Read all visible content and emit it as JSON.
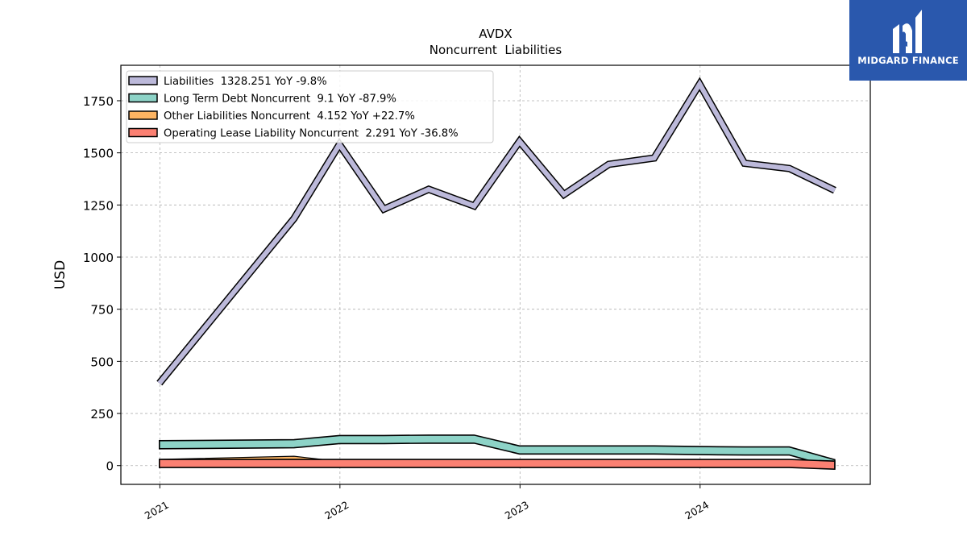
{
  "branding": {
    "logo_text": "MIDGARD FINANCE",
    "logo_bg": "#2a58ad"
  },
  "chart_data": {
    "type": "line",
    "title": "AVDX",
    "subtitle": "Noncurrent  Liabilities",
    "ylabel": "USD",
    "xlabel": "",
    "ylim": [
      -90,
      1920
    ],
    "yticks": [
      0,
      250,
      500,
      750,
      1000,
      1250,
      1500,
      1750
    ],
    "xlim": [
      "2020-10-14",
      "2024-12-11"
    ],
    "xticks": [
      {
        "label": "2021",
        "date": "2021-01-01"
      },
      {
        "label": "2022",
        "date": "2022-01-01"
      },
      {
        "label": "2023",
        "date": "2023-01-01"
      },
      {
        "label": "2024",
        "date": "2024-01-01"
      }
    ],
    "grid": true,
    "legend_position": "top-left",
    "series": [
      {
        "name": "Liabilities",
        "legend": "Liabilities  1328.251 YoY -9.8%",
        "color": "#bcb9da",
        "style": "line",
        "points": [
          [
            "2020-12-31",
            395
          ],
          [
            "2021-09-30",
            1185
          ],
          [
            "2021-12-31",
            1540
          ],
          [
            "2022-03-31",
            1230
          ],
          [
            "2022-06-30",
            1325
          ],
          [
            "2022-09-30",
            1245
          ],
          [
            "2022-12-31",
            1555
          ],
          [
            "2023-03-31",
            1300
          ],
          [
            "2023-06-30",
            1445
          ],
          [
            "2023-09-30",
            1475
          ],
          [
            "2023-12-31",
            1830
          ],
          [
            "2024-03-31",
            1450
          ],
          [
            "2024-06-30",
            1425
          ],
          [
            "2024-09-30",
            1320
          ]
        ]
      },
      {
        "name": "Long Term Debt Noncurrent",
        "legend": "Long Term Debt Noncurrent  9.1 YoY -87.9%",
        "color": "#8dd3c7",
        "style": "band",
        "points": [
          [
            "2020-12-31",
            100
          ],
          [
            "2021-09-30",
            105
          ],
          [
            "2021-12-31",
            125
          ],
          [
            "2022-03-31",
            125
          ],
          [
            "2022-06-30",
            127
          ],
          [
            "2022-09-30",
            127
          ],
          [
            "2022-12-31",
            75
          ],
          [
            "2023-03-31",
            75
          ],
          [
            "2023-06-30",
            75
          ],
          [
            "2023-09-30",
            75
          ],
          [
            "2023-12-31",
            72
          ],
          [
            "2024-03-31",
            70
          ],
          [
            "2024-06-30",
            70
          ],
          [
            "2024-09-30",
            9
          ]
        ]
      },
      {
        "name": "Other Liabilities Noncurrent",
        "legend": "Other Liabilities Noncurrent  4.152 YoY +22.7%",
        "color": "#fdb462",
        "style": "area",
        "points": [
          [
            "2020-12-31",
            30
          ],
          [
            "2021-09-30",
            45
          ],
          [
            "2021-12-31",
            20
          ],
          [
            "2022-03-31",
            5
          ],
          [
            "2022-06-30",
            5
          ],
          [
            "2022-09-30",
            5
          ],
          [
            "2022-12-31",
            5
          ],
          [
            "2023-03-31",
            5
          ],
          [
            "2023-06-30",
            5
          ],
          [
            "2023-09-30",
            5
          ],
          [
            "2023-12-31",
            5
          ],
          [
            "2024-03-31",
            5
          ],
          [
            "2024-06-30",
            5
          ],
          [
            "2024-09-30",
            4
          ]
        ]
      },
      {
        "name": "Operating Lease Liability Noncurrent",
        "legend": "Operating Lease Liability Noncurrent  2.291 YoY -36.8%",
        "color": "#fb8072",
        "style": "band",
        "points": [
          [
            "2020-12-31",
            10
          ],
          [
            "2021-09-30",
            10
          ],
          [
            "2021-12-31",
            10
          ],
          [
            "2022-03-31",
            10
          ],
          [
            "2022-06-30",
            10
          ],
          [
            "2022-09-30",
            10
          ],
          [
            "2022-12-31",
            10
          ],
          [
            "2023-03-31",
            10
          ],
          [
            "2023-06-30",
            10
          ],
          [
            "2023-09-30",
            10
          ],
          [
            "2023-12-31",
            10
          ],
          [
            "2024-03-31",
            10
          ],
          [
            "2024-06-30",
            10
          ],
          [
            "2024-09-30",
            2
          ]
        ]
      }
    ]
  }
}
